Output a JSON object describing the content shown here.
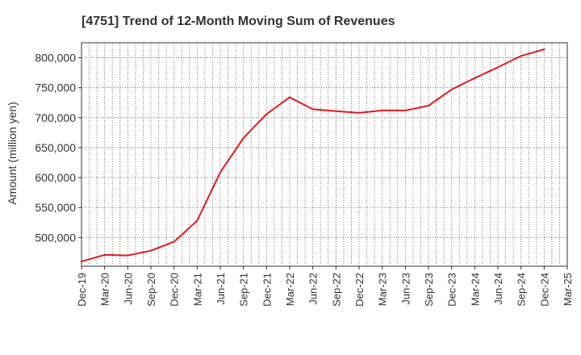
{
  "chart_data": {
    "type": "line",
    "title": "[4751]  Trend of 12-Month Moving Sum of Revenues",
    "xlabel": "",
    "ylabel": "Amount (million yen)",
    "x": [
      "Dec-19",
      "Mar-20",
      "Jun-20",
      "Sep-20",
      "Dec-20",
      "Mar-21",
      "Jun-21",
      "Sep-21",
      "Dec-21",
      "Mar-22",
      "Jun-22",
      "Sep-22",
      "Dec-22",
      "Mar-23",
      "Jun-23",
      "Sep-23",
      "Dec-23",
      "Mar-24",
      "Jun-24",
      "Sep-24",
      "Dec-24",
      "Mar-25"
    ],
    "series": [
      {
        "color": "#e31a1c",
        "values": [
          460000,
          471000,
          470000,
          478000,
          493000,
          528000,
          609000,
          666000,
          706000,
          734000,
          714000,
          711000,
          708000,
          712000,
          712000,
          720000,
          747000,
          766000,
          784000,
          803000,
          814000,
          null
        ]
      }
    ],
    "yticks": [
      500000,
      550000,
      600000,
      650000,
      700000,
      750000,
      800000
    ],
    "ytick_labels": [
      "500,000",
      "550,000",
      "600,000",
      "650,000",
      "700,000",
      "750,000",
      "800,000"
    ],
    "ylim": [
      452000,
      825000
    ],
    "grid": true
  }
}
